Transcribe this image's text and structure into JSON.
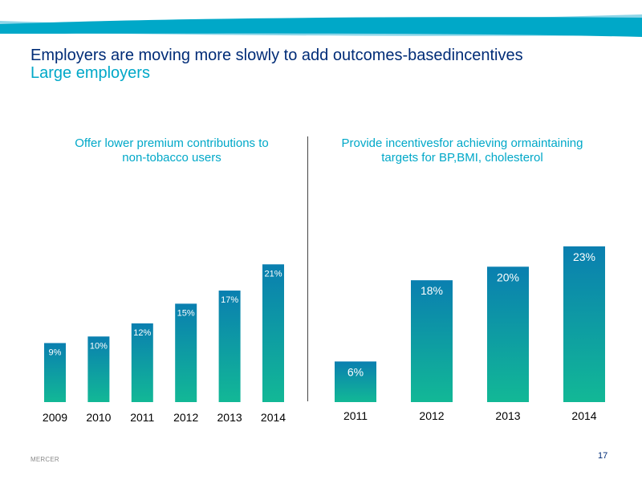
{
  "header": {
    "title": "Employers are moving more slowly to add outcomes-basedincentives",
    "subtitle": "Large employers"
  },
  "footer": {
    "brand": "MERCER",
    "page_number": "17"
  },
  "colors": {
    "bar_top": "#0a7fb0",
    "bar_bottom": "#12b896",
    "title": "#002c77",
    "accent": "#00a8c8",
    "band": "#00a8c8"
  },
  "chart_data": [
    {
      "type": "bar",
      "title": "Offer lower premium contributions to\nnon-tobacco users",
      "categories": [
        "2009",
        "2010",
        "2011",
        "2012",
        "2013",
        "2014"
      ],
      "values": [
        9,
        10,
        12,
        15,
        17,
        21
      ],
      "labels": [
        "9%",
        "10%",
        "12%",
        "15%",
        "17%",
        "21%"
      ],
      "ylim": [
        0,
        23
      ],
      "grid": false
    },
    {
      "type": "bar",
      "title": "Provide incentivesfor achieving ormaintaining\ntargets for BP,BMI, cholesterol",
      "categories": [
        "2011",
        "2012",
        "2013",
        "2014"
      ],
      "values": [
        6,
        18,
        20,
        23
      ],
      "labels": [
        "6%",
        "18%",
        "20%",
        "23%"
      ],
      "ylim": [
        0,
        23
      ],
      "grid": false
    }
  ]
}
